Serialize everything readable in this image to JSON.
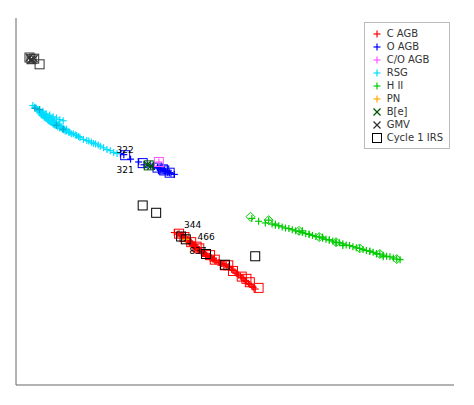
{
  "chart_data": {
    "type": "scatter",
    "xlim": [
      0.0,
      6.5
    ],
    "ylim": [
      6.5,
      0.0
    ],
    "xticks": [
      0,
      1,
      2,
      3,
      4,
      5,
      6
    ],
    "yticks": [
      0,
      1,
      2,
      3,
      4,
      5,
      6
    ],
    "tick_labels": false,
    "grid": false,
    "legend": "upper right",
    "series": [
      {
        "name": "C AGB",
        "color": "#ff0000",
        "marker": "plus",
        "x": [
          2.35,
          2.4,
          2.45,
          2.48,
          2.5,
          2.5,
          2.52,
          2.53,
          2.55,
          2.55,
          2.57,
          2.58,
          2.6,
          2.6,
          2.62,
          2.63,
          2.65,
          2.65,
          2.67,
          2.68,
          2.7,
          2.7,
          2.72,
          2.73,
          2.75,
          2.75,
          2.77,
          2.78,
          2.8,
          2.82,
          2.83,
          2.85,
          2.87,
          2.88,
          2.9,
          2.92,
          2.93,
          2.95,
          2.97,
          3.0,
          3.02,
          3.05,
          3.07,
          3.1,
          3.12,
          3.15,
          3.17,
          3.2,
          3.22,
          3.25,
          3.27,
          3.3,
          3.33,
          3.35,
          3.38,
          3.4,
          3.42,
          3.45,
          3.47,
          3.5,
          3.52,
          3.55,
          2.42,
          2.47,
          2.52,
          2.57,
          2.62,
          2.67,
          2.72,
          2.77,
          2.82
        ],
        "values": [
          3.8,
          3.83,
          3.85,
          3.87,
          3.88,
          3.9,
          3.9,
          3.92,
          3.92,
          3.95,
          3.95,
          3.97,
          3.97,
          4.0,
          4.0,
          4.02,
          4.02,
          4.05,
          4.05,
          4.07,
          4.07,
          4.1,
          4.1,
          4.12,
          4.12,
          4.15,
          4.15,
          4.17,
          4.17,
          4.2,
          4.2,
          4.22,
          4.22,
          4.25,
          4.25,
          4.27,
          4.27,
          4.3,
          4.3,
          4.33,
          4.33,
          4.35,
          4.35,
          4.37,
          4.38,
          4.4,
          4.42,
          4.45,
          4.47,
          4.5,
          4.52,
          4.55,
          4.57,
          4.6,
          4.62,
          4.65,
          4.67,
          4.7,
          4.72,
          4.75,
          4.77,
          4.8,
          3.82,
          3.87,
          3.92,
          3.97,
          4.02,
          4.07,
          4.12,
          4.17,
          4.22
        ]
      },
      {
        "color": "#ff0000",
        "marker": "open_square",
        "x": [
          2.5,
          2.6,
          2.72,
          2.82,
          2.95,
          3.1,
          3.22,
          3.35,
          3.47,
          3.6,
          2.42,
          2.68,
          2.88,
          3.15,
          3.42
        ],
        "values": [
          3.88,
          3.97,
          4.08,
          4.18,
          4.28,
          4.38,
          4.48,
          4.58,
          4.68,
          4.78,
          3.82,
          4.05,
          4.2,
          4.38,
          4.62
        ]
      },
      {
        "name": "O AGB",
        "color": "#0000ff",
        "marker": "plus",
        "x": [
          1.55,
          1.7,
          1.82,
          1.9,
          2.0,
          2.05,
          2.1,
          2.12,
          2.15,
          2.18,
          2.2,
          2.22,
          2.25,
          2.28,
          2.3,
          2.35,
          2.05,
          2.1,
          2.15,
          2.2,
          2.25,
          1.6
        ],
        "values": [
          2.4,
          2.5,
          2.55,
          2.6,
          2.62,
          2.63,
          2.65,
          2.67,
          2.68,
          2.69,
          2.7,
          2.72,
          2.73,
          2.74,
          2.75,
          2.77,
          2.63,
          2.65,
          2.67,
          2.69,
          2.71,
          2.42
        ]
      },
      {
        "color": "#0000ff",
        "marker": "open_square",
        "x": [
          1.88,
          2.1,
          2.2,
          2.28,
          2.18,
          1.62
        ],
        "values": [
          2.57,
          2.65,
          2.7,
          2.74,
          2.68,
          2.43
        ]
      },
      {
        "name": "C/O AGB",
        "color": "#ff55ff",
        "marker": "plus",
        "x": [
          2.12
        ],
        "values": [
          2.55
        ]
      },
      {
        "color": "#ff55ff",
        "marker": "open_square",
        "x": [
          2.12
        ],
        "values": [
          2.55
        ]
      },
      {
        "name": "RSG",
        "color": "#00ddff",
        "marker": "plus",
        "x": [
          0.25,
          0.28,
          0.3,
          0.32,
          0.33,
          0.35,
          0.35,
          0.37,
          0.38,
          0.38,
          0.4,
          0.4,
          0.42,
          0.42,
          0.43,
          0.44,
          0.45,
          0.45,
          0.46,
          0.47,
          0.48,
          0.48,
          0.5,
          0.5,
          0.5,
          0.51,
          0.52,
          0.52,
          0.53,
          0.53,
          0.54,
          0.55,
          0.55,
          0.56,
          0.57,
          0.58,
          0.58,
          0.6,
          0.6,
          0.62,
          0.62,
          0.63,
          0.65,
          0.65,
          0.67,
          0.68,
          0.7,
          0.7,
          0.72,
          0.73,
          0.75,
          0.75,
          0.78,
          0.8,
          0.82,
          0.85,
          0.88,
          0.9,
          0.93,
          0.95,
          1.0,
          1.05,
          1.08,
          1.12,
          1.15,
          1.18,
          1.22,
          1.25,
          1.3,
          1.35,
          1.4,
          1.45,
          1.5,
          0.4,
          0.45,
          0.5,
          0.55,
          0.6,
          0.65,
          0.7,
          0.3,
          0.35,
          0.55,
          0.6,
          0.48,
          0.52,
          0.56,
          0.43,
          0.47,
          0.53,
          0.57
        ],
        "values": [
          1.55,
          1.58,
          1.6,
          1.62,
          1.63,
          1.65,
          1.68,
          1.7,
          1.72,
          1.68,
          1.73,
          1.7,
          1.73,
          1.76,
          1.72,
          1.75,
          1.75,
          1.78,
          1.77,
          1.8,
          1.79,
          1.82,
          1.8,
          1.83,
          1.75,
          1.82,
          1.82,
          1.85,
          1.83,
          1.78,
          1.85,
          1.85,
          1.88,
          1.87,
          1.88,
          1.9,
          1.85,
          1.9,
          1.87,
          1.9,
          1.93,
          1.88,
          1.92,
          1.95,
          1.93,
          1.95,
          1.95,
          1.98,
          1.97,
          2.0,
          2.0,
          1.97,
          2.02,
          2.03,
          2.05,
          2.05,
          2.07,
          2.08,
          2.1,
          2.12,
          2.15,
          2.17,
          2.18,
          2.2,
          2.22,
          2.23,
          2.25,
          2.27,
          2.3,
          2.33,
          2.35,
          2.38,
          2.4,
          1.65,
          1.7,
          1.72,
          1.75,
          1.77,
          1.8,
          1.82,
          1.6,
          1.63,
          1.83,
          1.85,
          1.78,
          1.8,
          1.83,
          1.73,
          1.75,
          1.82,
          1.85
        ]
      },
      {
        "color": "#00aacc",
        "marker": "plus",
        "x": [
          0.35,
          0.7,
          0.28,
          0.6
        ],
        "values": [
          1.62,
          1.97,
          1.6,
          1.9
        ]
      },
      {
        "name": "H ⅠⅠ",
        "color": "#00cc00",
        "marker": "plus",
        "x": [
          3.5,
          3.6,
          3.7,
          3.8,
          3.85,
          3.9,
          3.95,
          4.0,
          4.05,
          4.1,
          4.15,
          4.2,
          4.25,
          4.3,
          4.35,
          4.4,
          4.45,
          4.5,
          4.55,
          4.6,
          4.65,
          4.7,
          4.75,
          4.8,
          4.85,
          4.9,
          4.95,
          5.0,
          5.05,
          5.1,
          5.15,
          5.2,
          5.25,
          5.3,
          5.35,
          5.4,
          5.45,
          5.5,
          5.55,
          5.6,
          5.65,
          5.7,
          3.75,
          3.85,
          4.25,
          4.35,
          4.55,
          4.65,
          4.75,
          4.85,
          5.25,
          5.35,
          5.45
        ],
        "values": [
          3.55,
          3.6,
          3.63,
          3.65,
          3.67,
          3.68,
          3.7,
          3.72,
          3.73,
          3.75,
          3.77,
          3.78,
          3.8,
          3.82,
          3.83,
          3.85,
          3.87,
          3.88,
          3.9,
          3.92,
          3.93,
          3.95,
          3.97,
          3.98,
          4.0,
          4.02,
          4.03,
          4.05,
          4.07,
          4.08,
          4.1,
          4.12,
          4.13,
          4.15,
          4.17,
          4.18,
          4.2,
          4.22,
          4.23,
          4.25,
          4.27,
          4.28,
          3.58,
          3.65,
          3.77,
          3.83,
          3.88,
          3.93,
          3.98,
          4.03,
          4.13,
          4.18,
          4.23
        ]
      },
      {
        "color": "#00cc00",
        "marker": "open_diamond",
        "x": [
          3.48,
          3.75,
          4.2,
          4.5,
          4.75,
          5.1,
          5.4,
          5.65
        ],
        "values": [
          3.52,
          3.58,
          3.77,
          3.88,
          3.97,
          4.08,
          4.18,
          4.27
        ]
      },
      {
        "name": "PN",
        "color": "#ffaa00",
        "marker": "plus",
        "x": [
          2.52
        ],
        "values": [
          3.92
        ]
      },
      {
        "name": "B[e]",
        "color": "#005500",
        "marker": "x",
        "x": [
          1.95,
          2.0
        ],
        "values": [
          2.6,
          2.62
        ]
      },
      {
        "color": "#005500",
        "marker": "open_square",
        "x": [
          1.97
        ],
        "values": [
          2.61
        ]
      },
      {
        "name": "GMV",
        "color": "#333333",
        "marker": "x",
        "x": [
          0.2,
          0.23,
          0.27,
          0.22
        ],
        "values": [
          0.7,
          0.73,
          0.72,
          0.75
        ]
      },
      {
        "color": "#333333",
        "marker": "open_square",
        "x": [
          0.2,
          0.23,
          0.27,
          0.35
        ],
        "values": [
          0.7,
          0.73,
          0.72,
          0.82
        ]
      },
      {
        "name": "Cycle 1 IRS",
        "color": "#000000",
        "marker": "open_square",
        "x": [
          1.88,
          2.45,
          2.52,
          2.08,
          3.55,
          2.82,
          3.1
        ],
        "values": [
          3.32,
          3.87,
          3.92,
          3.45,
          4.22,
          4.18,
          4.37
        ]
      }
    ],
    "annotations": [
      {
        "text": "322",
        "x": 1.62,
        "y": 2.48
      },
      {
        "text": "321",
        "x": 1.62,
        "y": 2.54
      },
      {
        "text": "344",
        "x": 2.62,
        "y": 3.8
      },
      {
        "text": "466",
        "x": 2.62,
        "y": 3.88
      },
      {
        "text": "837",
        "x": 2.7,
        "y": 3.97
      }
    ]
  }
}
